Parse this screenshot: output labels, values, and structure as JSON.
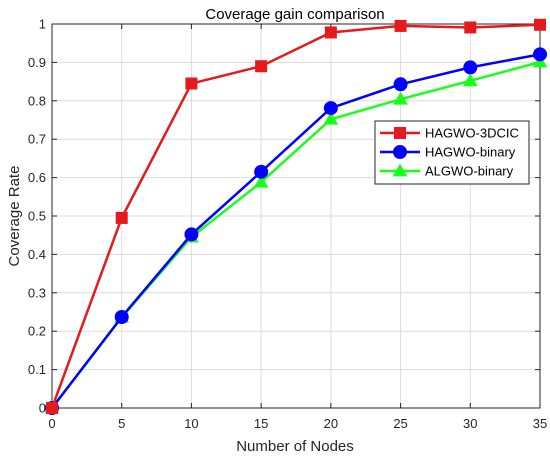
{
  "chart_data": {
    "type": "line",
    "title": "Coverage gain comparison",
    "xlabel": "Number of Nodes",
    "ylabel": "Coverage Rate",
    "x": [
      0,
      5,
      10,
      15,
      20,
      25,
      30,
      35
    ],
    "xlim": [
      0,
      35
    ],
    "ylim": [
      0,
      1
    ],
    "xticks": [
      "0",
      "5",
      "10",
      "15",
      "20",
      "25",
      "30",
      "35"
    ],
    "yticks": [
      "0",
      "0.1",
      "0.2",
      "0.3",
      "0.4",
      "0.5",
      "0.6",
      "0.7",
      "0.8",
      "0.9",
      "1"
    ],
    "grid": true,
    "legend_position": "top-right",
    "series": [
      {
        "name": "HAGWO-3DCIC",
        "color": "#e41a1c",
        "marker": "square",
        "values": [
          0.0,
          0.495,
          0.845,
          0.89,
          0.978,
          0.995,
          0.991,
          0.998
        ]
      },
      {
        "name": "HAGWO-binary",
        "color": "#0000ff",
        "marker": "circle",
        "values": [
          0.0,
          0.237,
          0.452,
          0.615,
          0.781,
          0.843,
          0.887,
          0.921
        ]
      },
      {
        "name": "ALGWO-binary",
        "color": "#1aff1a",
        "marker": "triangle",
        "values": [
          0.0,
          0.236,
          0.445,
          0.588,
          0.752,
          0.804,
          0.852,
          0.901
        ]
      }
    ]
  }
}
